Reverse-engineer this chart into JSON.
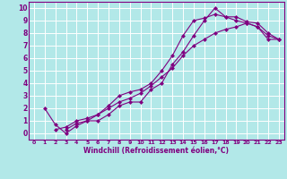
{
  "xlabel": "Windchill (Refroidissement éolien,°C)",
  "bg_color": "#b2e8e8",
  "line_color": "#800080",
  "grid_color": "#ffffff",
  "xlim": [
    -0.5,
    23.5
  ],
  "ylim": [
    -0.5,
    10.5
  ],
  "xticks": [
    0,
    1,
    2,
    3,
    4,
    5,
    6,
    7,
    8,
    9,
    10,
    11,
    12,
    13,
    14,
    15,
    16,
    17,
    18,
    19,
    20,
    21,
    22,
    23
  ],
  "yticks": [
    0,
    1,
    2,
    3,
    4,
    5,
    6,
    7,
    8,
    9,
    10
  ],
  "line1_x": [
    1,
    2,
    3,
    4,
    5,
    6,
    7,
    8,
    9,
    10,
    11,
    12,
    13,
    14,
    15,
    16,
    17,
    18,
    19,
    20,
    21,
    22,
    23
  ],
  "line1_y": [
    2.0,
    0.7,
    0.0,
    0.6,
    1.0,
    1.0,
    1.5,
    2.2,
    2.5,
    2.5,
    3.5,
    4.0,
    5.5,
    6.5,
    7.8,
    9.0,
    10.0,
    9.3,
    9.3,
    8.9,
    8.8,
    8.0,
    7.5
  ],
  "line2_x": [
    3,
    4,
    5,
    6,
    7,
    8,
    9,
    10,
    11,
    12,
    13,
    14,
    15,
    16,
    17,
    18,
    19,
    20,
    21,
    22,
    23
  ],
  "line2_y": [
    0.3,
    0.8,
    1.0,
    1.5,
    2.2,
    3.0,
    3.3,
    3.5,
    4.0,
    5.0,
    6.2,
    7.8,
    9.0,
    9.2,
    9.5,
    9.3,
    9.0,
    8.8,
    8.5,
    7.8,
    7.5
  ],
  "line3_x": [
    2,
    3,
    4,
    5,
    6,
    7,
    8,
    9,
    10,
    11,
    12,
    13,
    14,
    15,
    16,
    17,
    18,
    19,
    20,
    21,
    22,
    23
  ],
  "line3_y": [
    0.3,
    0.5,
    1.0,
    1.2,
    1.5,
    2.0,
    2.5,
    2.8,
    3.2,
    3.8,
    4.5,
    5.2,
    6.2,
    7.0,
    7.5,
    8.0,
    8.3,
    8.5,
    8.8,
    8.5,
    7.5,
    7.5
  ]
}
